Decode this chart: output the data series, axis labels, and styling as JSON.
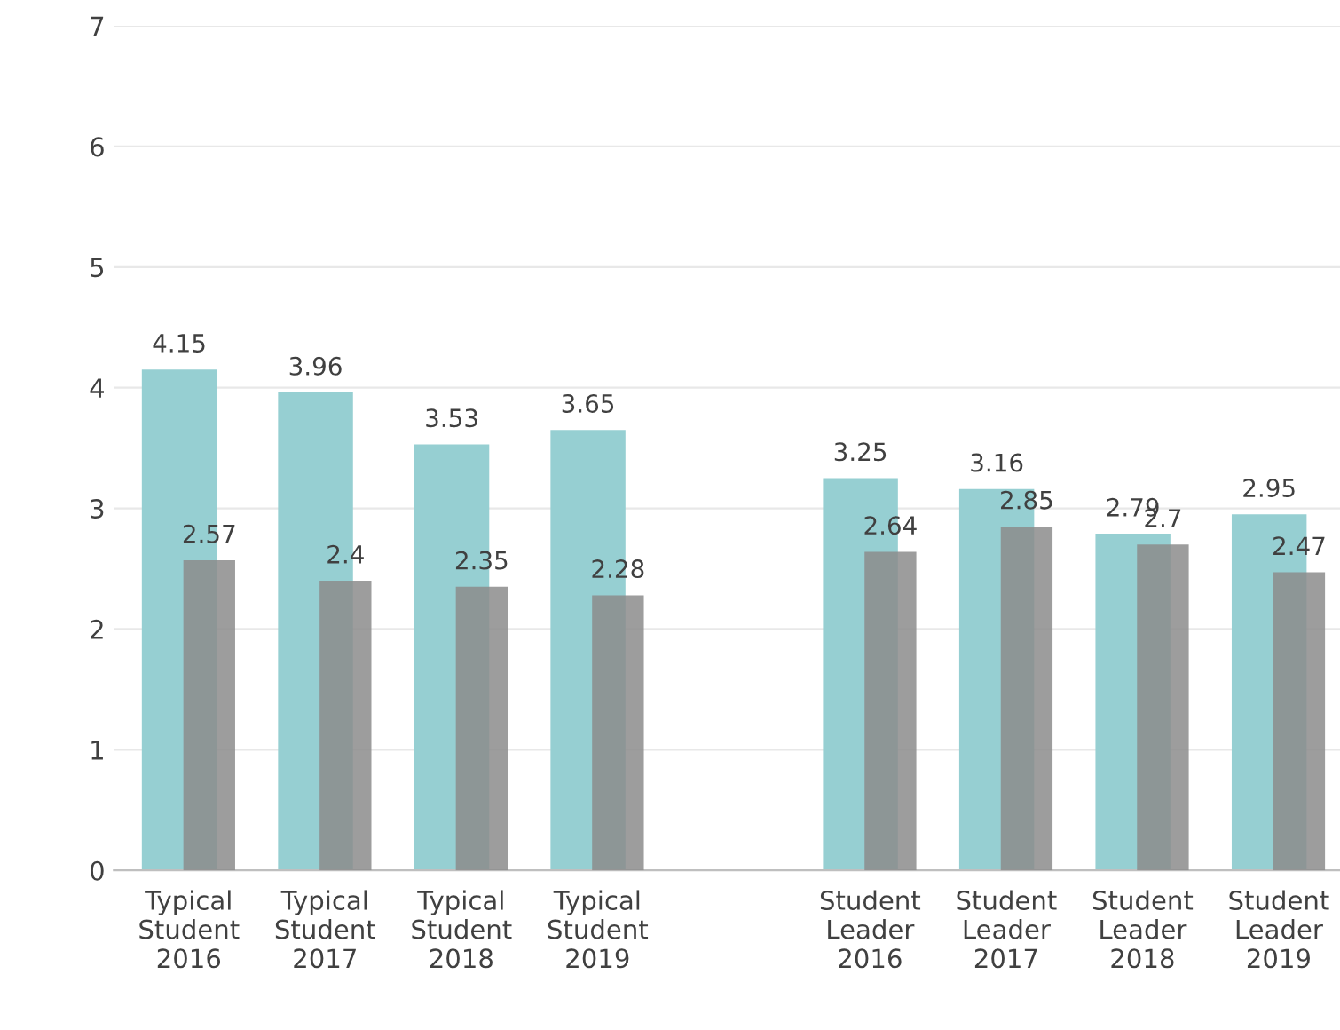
{
  "chart_data": {
    "type": "bar",
    "categories": [
      "Typical\nStudent\n2016",
      "Typical\nStudent\n2017",
      "Typical\nStudent\n2018",
      "Typical\nStudent\n2019",
      null,
      "Student\nLeader\n2016",
      "Student\nLeader\n2017",
      "Student\nLeader\n2018",
      "Student\nLeader\n2019"
    ],
    "series": [
      {
        "color": "#96cfd2",
        "values": [
          4.15,
          3.96,
          3.53,
          3.65,
          null,
          3.25,
          3.16,
          2.79,
          2.95
        ]
      },
      {
        "color": "#8c8c8c",
        "values": [
          2.57,
          2.4,
          2.35,
          2.28,
          null,
          2.64,
          2.85,
          2.7,
          2.47
        ]
      }
    ],
    "ylim": [
      0,
      7
    ],
    "yticks": [
      0,
      1,
      2,
      3,
      4,
      5,
      6,
      7
    ],
    "grid": "y",
    "data_labels": true,
    "legend": false
  }
}
